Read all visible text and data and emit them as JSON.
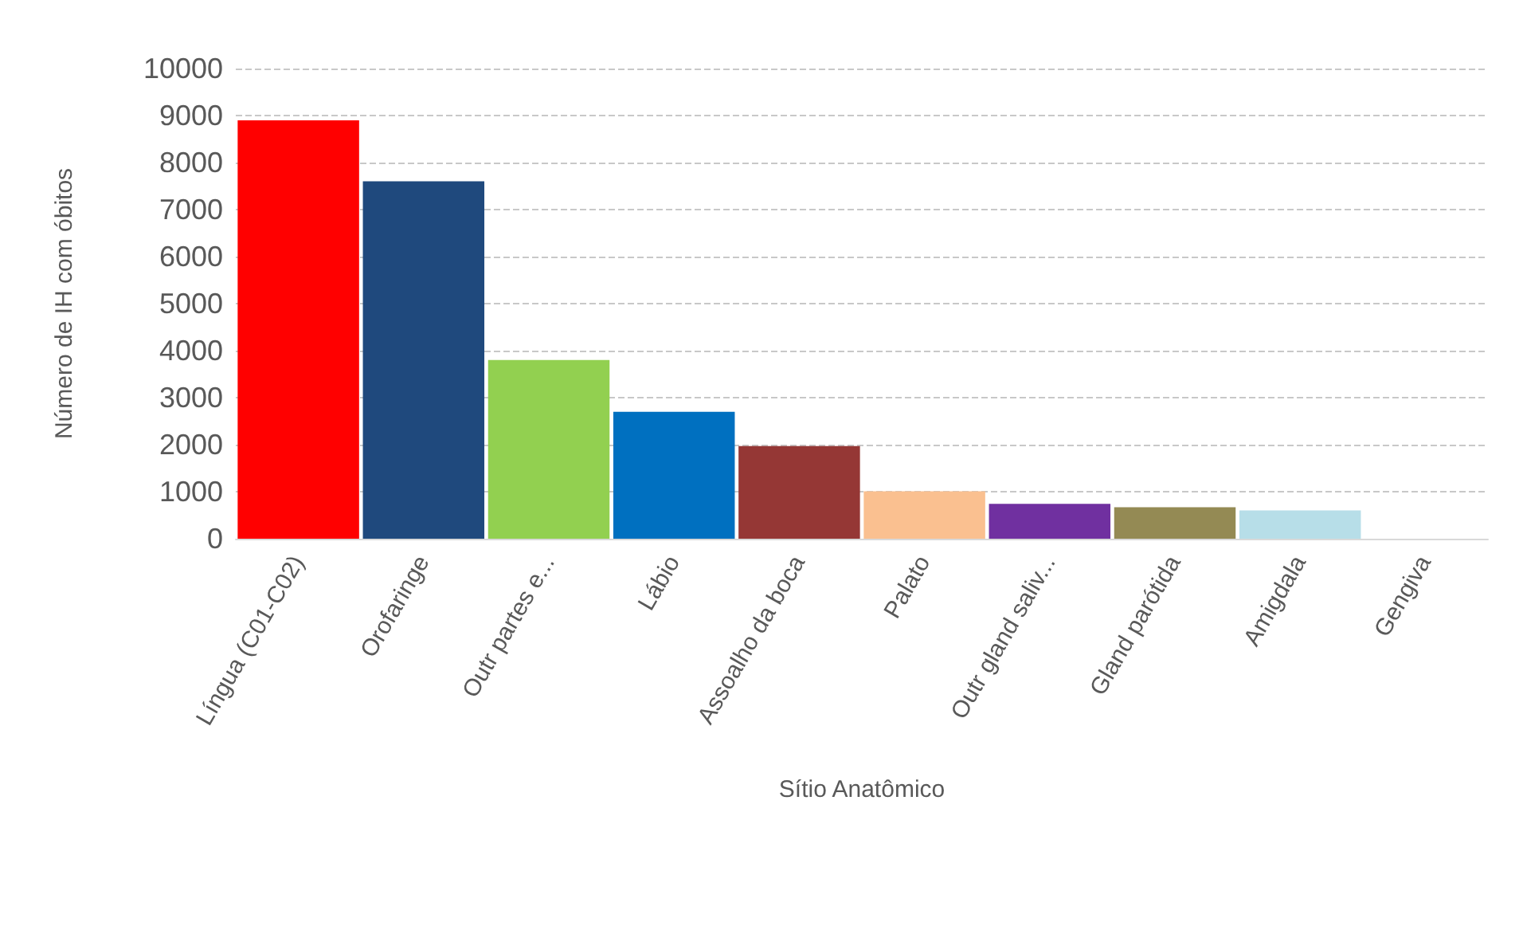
{
  "chart_data": {
    "type": "bar",
    "xlabel": "Sítio Anatômico",
    "ylabel": "Número de IH com óbitos",
    "categories": [
      "Língua (C01-C02)",
      "Orofaringe",
      "Outr partes e...",
      "Lábio",
      "Assoalho da boca",
      "Palato",
      "Outr gland saliv...",
      "Gland parótida",
      "Amigdala",
      "Gengiva"
    ],
    "values": [
      8900,
      7600,
      3800,
      2700,
      1970,
      1010,
      740,
      670,
      600,
      0
    ],
    "colors": [
      "#ff0000",
      "#1f497d",
      "#92d050",
      "#0070c0",
      "#953735",
      "#fac090",
      "#7030a0",
      "#948a54",
      "#b7dee8",
      "#4f81bd"
    ],
    "ylim": [
      0,
      10000
    ],
    "yticks": [
      0,
      1000,
      2000,
      3000,
      4000,
      5000,
      6000,
      7000,
      8000,
      9000,
      10000
    ],
    "grid": "y"
  }
}
